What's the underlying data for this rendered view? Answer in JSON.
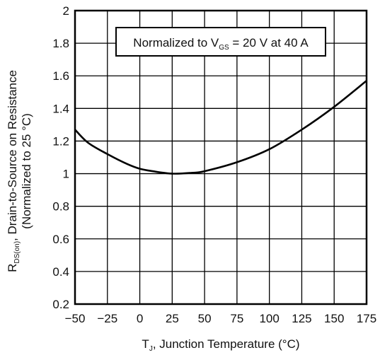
{
  "chart_data": {
    "type": "line",
    "x_title": {
      "symbol": "T",
      "subscript": "J",
      "rest": ", Junction Temperature (°C)"
    },
    "y_title": {
      "symbol": "R",
      "subscript": "DS(on)",
      "rest": ", Drain-to-Source on Resistance",
      "line2": "(Normalized to 25 °C)"
    },
    "annotation": {
      "prefix": "Normalized to V",
      "subscript": "GS",
      "suffix": " = 20 V at 40 A"
    },
    "xlim": [
      -50,
      175
    ],
    "ylim": [
      0.2,
      2.0
    ],
    "x_ticks": [
      -50,
      -25,
      0,
      25,
      50,
      75,
      100,
      125,
      150,
      175
    ],
    "x_tick_labels": [
      "−50",
      "−25",
      "0",
      "25",
      "50",
      "75",
      "100",
      "125",
      "150",
      "175"
    ],
    "y_ticks": [
      0.2,
      0.4,
      0.6,
      0.8,
      1.0,
      1.2,
      1.4,
      1.6,
      1.8,
      2.0
    ],
    "y_tick_labels": [
      "0.2",
      "0.4",
      "0.6",
      "0.8",
      "1",
      "1.2",
      "1.4",
      "1.6",
      "1.8",
      "2"
    ],
    "grid": true,
    "series": [
      {
        "x": [
          -50,
          -40,
          -25,
          -10,
          0,
          10,
          25,
          40,
          50,
          75,
          100,
          125,
          150,
          175
        ],
        "y": [
          1.27,
          1.19,
          1.12,
          1.06,
          1.03,
          1.015,
          1.0,
          1.005,
          1.015,
          1.07,
          1.15,
          1.27,
          1.41,
          1.57
        ],
        "color": "#000000"
      }
    ]
  }
}
